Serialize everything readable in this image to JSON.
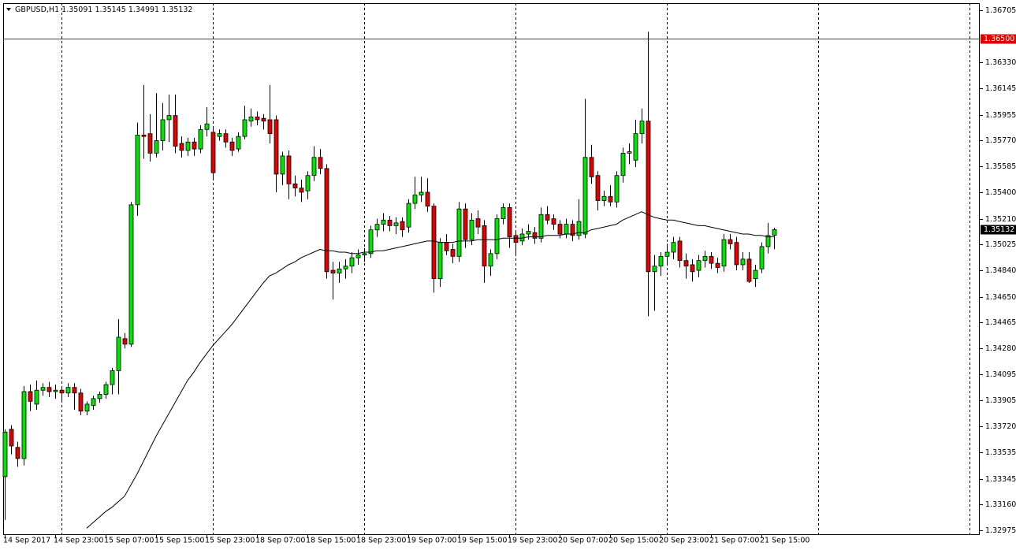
{
  "chart_data": {
    "type": "candlestick",
    "symbol": "GBPUSD,H1",
    "categories": [
      "14 Sep 2017",
      null,
      null,
      null,
      null,
      null,
      null,
      null,
      "14 Sep 23:00",
      null,
      null,
      null,
      null,
      null,
      null,
      null,
      "15 Sep 07:00",
      null,
      null,
      null,
      null,
      null,
      null,
      null,
      "15 Sep 15:00",
      null,
      null,
      null,
      null,
      null,
      null,
      null,
      "15 Sep 23:00",
      null,
      null,
      null,
      null,
      null,
      null,
      null,
      "18 Sep 07:00",
      null,
      null,
      null,
      null,
      null,
      null,
      null,
      "18 Sep 15:00",
      null,
      null,
      null,
      null,
      null,
      null,
      null,
      "18 Sep 23:00",
      null,
      null,
      null,
      null,
      null,
      null,
      null,
      "19 Sep 07:00",
      null,
      null,
      null,
      null,
      null,
      null,
      null,
      "19 Sep 15:00",
      null,
      null,
      null,
      null,
      null,
      null,
      null,
      "19 Sep 23:00",
      null,
      null,
      null,
      null,
      null,
      null,
      null,
      "20 Sep 07:00",
      null,
      null,
      null,
      null,
      null,
      null,
      null,
      "20 Sep 15:00",
      null,
      null,
      null,
      null,
      null,
      null,
      null,
      "20 Sep 23:00",
      null,
      null,
      null,
      null,
      null,
      null,
      null,
      "21 Sep 07:00",
      null,
      null,
      null,
      null,
      null,
      null,
      null,
      "21 Sep 15:00",
      null,
      null
    ],
    "open": [
      1.3336,
      1.337,
      1.3357,
      1.3349,
      1.3397,
      1.3388,
      1.3398,
      1.34,
      1.3397,
      1.3398,
      1.3396,
      1.34,
      1.3396,
      1.3383,
      1.3387,
      1.3392,
      1.3395,
      1.3402,
      1.3412,
      1.3435,
      1.3431,
      1.3531,
      1.3581,
      1.3582,
      1.3568,
      1.3577,
      1.3592,
      1.3595,
      1.3575,
      1.357,
      1.3576,
      1.3571,
      1.3585,
      1.3583,
      1.358,
      1.3582,
      1.3576,
      1.3571,
      1.358,
      1.3591,
      1.3594,
      1.3593,
      1.3592,
      1.3592,
      1.3553,
      1.3566,
      1.3546,
      1.3543,
      1.3541,
      1.3552,
      1.3565,
      1.3557,
      1.3484,
      1.3482,
      1.3485,
      1.3487,
      1.3493,
      1.3495,
      1.3496,
      1.3513,
      1.3517,
      1.352,
      1.3516,
      1.3519,
      1.3515,
      1.3532,
      1.3538,
      1.354,
      1.353,
      1.3478,
      1.3504,
      1.3499,
      1.3494,
      1.3528,
      1.3506,
      1.3521,
      1.3516,
      1.3487,
      1.3496,
      1.3521,
      1.3529,
      1.3509,
      1.3505,
      1.351,
      1.3511,
      1.3507,
      1.3524,
      1.3521,
      1.3517,
      1.351,
      1.3517,
      1.3509,
      1.351,
      1.3565,
      1.3552,
      1.3534,
      1.3537,
      1.3533,
      1.3552,
      1.3568,
      1.3563,
      1.3582,
      1.3591,
      1.3483,
      1.3487,
      1.3494,
      1.3497,
      1.3505,
      1.3491,
      1.3488,
      1.3484,
      1.3491,
      1.3494,
      1.3489,
      1.3487,
      1.3506,
      1.3504,
      1.3488,
      1.3492,
      1.3478,
      1.3485,
      1.3501,
      1.35091
    ],
    "high": [
      1.337,
      1.3373,
      1.3361,
      1.3401,
      1.3402,
      1.3405,
      1.3403,
      1.3404,
      1.3402,
      1.3401,
      1.3403,
      1.3403,
      1.3399,
      1.339,
      1.3394,
      1.3397,
      1.3404,
      1.3414,
      1.3449,
      1.3439,
      1.3533,
      1.359,
      1.3617,
      1.3596,
      1.3611,
      1.3604,
      1.361,
      1.361,
      1.358,
      1.3579,
      1.3579,
      1.3588,
      1.3601,
      1.3587,
      1.3585,
      1.3585,
      1.3579,
      1.3583,
      1.3602,
      1.36,
      1.3598,
      1.3596,
      1.3617,
      1.3595,
      1.3569,
      1.357,
      1.3552,
      1.3549,
      1.3555,
      1.3573,
      1.3571,
      1.356,
      1.349,
      1.349,
      1.3492,
      1.3497,
      1.3499,
      1.35,
      1.3516,
      1.3521,
      1.3525,
      1.3523,
      1.3522,
      1.3522,
      1.3535,
      1.3551,
      1.3551,
      1.355,
      1.3532,
      1.3507,
      1.351,
      1.3503,
      1.3533,
      1.3532,
      1.3525,
      1.3527,
      1.352,
      1.3499,
      1.3524,
      1.3532,
      1.3532,
      1.3512,
      1.3514,
      1.3517,
      1.3515,
      1.3529,
      1.353,
      1.3524,
      1.352,
      1.3521,
      1.352,
      1.3535,
      1.3607,
      1.3574,
      1.3555,
      1.3541,
      1.3545,
      1.3555,
      1.3572,
      1.3575,
      1.3592,
      1.36,
      1.3655,
      1.3495,
      1.3497,
      1.3503,
      1.3508,
      1.3508,
      1.3496,
      1.3492,
      1.3495,
      1.3498,
      1.3497,
      1.3493,
      1.351,
      1.351,
      1.3508,
      1.3497,
      1.3497,
      1.3488,
      1.3504,
      1.3518,
      1.35145
    ],
    "low": [
      1.3305,
      1.3352,
      1.3343,
      1.3344,
      1.3383,
      1.3384,
      1.3394,
      1.3393,
      1.3392,
      1.339,
      1.3393,
      1.3384,
      1.338,
      1.338,
      1.3384,
      1.3389,
      1.3392,
      1.3395,
      1.3395,
      1.3428,
      1.3429,
      1.3523,
      1.3564,
      1.3562,
      1.3565,
      1.357,
      1.3576,
      1.3568,
      1.3565,
      1.3566,
      1.3566,
      1.3568,
      1.358,
      1.355,
      1.3577,
      1.3572,
      1.3566,
      1.3569,
      1.3578,
      1.3587,
      1.3588,
      1.3585,
      1.3575,
      1.354,
      1.3545,
      1.3535,
      1.3537,
      1.3533,
      1.3535,
      1.3548,
      1.3553,
      1.3478,
      1.3463,
      1.3475,
      1.3478,
      1.3482,
      1.3488,
      1.349,
      1.3493,
      1.3508,
      1.3512,
      1.3512,
      1.351,
      1.3508,
      1.3511,
      1.3528,
      1.3533,
      1.3526,
      1.3468,
      1.3472,
      1.3495,
      1.3489,
      1.349,
      1.35,
      1.3502,
      1.351,
      1.3475,
      1.348,
      1.3492,
      1.3517,
      1.35,
      1.3495,
      1.3502,
      1.3506,
      1.3503,
      1.3504,
      1.3517,
      1.3513,
      1.3507,
      1.3507,
      1.3505,
      1.3506,
      1.3507,
      1.3546,
      1.3527,
      1.353,
      1.353,
      1.3529,
      1.3547,
      1.356,
      1.3558,
      1.3575,
      1.3451,
      1.3455,
      1.348,
      1.3488,
      1.3492,
      1.3486,
      1.3478,
      1.3476,
      1.3479,
      1.3486,
      1.3485,
      1.3482,
      1.3483,
      1.3499,
      1.3484,
      1.3484,
      1.3475,
      1.3472,
      1.3482,
      1.3496,
      1.34991
    ],
    "close": [
      1.3368,
      1.3358,
      1.3349,
      1.3397,
      1.339,
      1.3398,
      1.34,
      1.3397,
      1.3398,
      1.3396,
      1.34,
      1.3396,
      1.3383,
      1.3388,
      1.3392,
      1.3395,
      1.3402,
      1.3412,
      1.3436,
      1.3431,
      1.3531,
      1.3581,
      1.358,
      1.3568,
      1.3577,
      1.3592,
      1.3595,
      1.3573,
      1.357,
      1.3576,
      1.3571,
      1.3585,
      1.3589,
      1.3554,
      1.3582,
      1.3576,
      1.357,
      1.358,
      1.3592,
      1.3594,
      1.3592,
      1.3591,
      1.3582,
      1.3553,
      1.3566,
      1.3546,
      1.3543,
      1.354,
      1.3552,
      1.3565,
      1.3557,
      1.3483,
      1.3482,
      1.3485,
      1.3487,
      1.3493,
      1.3495,
      1.3496,
      1.3513,
      1.3517,
      1.352,
      1.3516,
      1.3518,
      1.3513,
      1.3532,
      1.3538,
      1.354,
      1.353,
      1.3478,
      1.3504,
      1.3498,
      1.3494,
      1.3528,
      1.3506,
      1.352,
      1.3515,
      1.3487,
      1.3496,
      1.3521,
      1.3529,
      1.3508,
      1.3504,
      1.351,
      1.3512,
      1.3507,
      1.3524,
      1.352,
      1.3517,
      1.351,
      1.3517,
      1.3509,
      1.3519,
      1.3565,
      1.3551,
      1.3534,
      1.3537,
      1.3533,
      1.3552,
      1.3568,
      1.3569,
      1.3582,
      1.3591,
      1.3483,
      1.3487,
      1.3494,
      1.3497,
      1.3504,
      1.3491,
      1.3487,
      1.3483,
      1.3491,
      1.3494,
      1.3489,
      1.3486,
      1.3506,
      1.3503,
      1.3488,
      1.3492,
      1.3476,
      1.3484,
      1.3501,
      1.3509,
      1.35132
    ],
    "ma_values": [
      null,
      null,
      null,
      null,
      null,
      null,
      null,
      null,
      null,
      null,
      null,
      null,
      null,
      1.3299,
      1.3303,
      1.3307,
      1.3311,
      1.3314,
      1.3318,
      1.3322,
      1.333,
      1.3338,
      1.3347,
      1.3356,
      1.3365,
      1.3373,
      1.3381,
      1.3389,
      1.3397,
      1.3405,
      1.3411,
      1.3418,
      1.3424,
      1.343,
      1.3435,
      1.344,
      1.3445,
      1.3451,
      1.3457,
      1.3463,
      1.3469,
      1.3475,
      1.348,
      1.3482,
      1.3485,
      1.3488,
      1.349,
      1.3493,
      1.3495,
      1.3497,
      1.3499,
      1.3498,
      1.3498,
      1.3497,
      1.3497,
      1.3496,
      1.3496,
      1.3497,
      1.3497,
      1.3498,
      1.3498,
      1.3499,
      1.35,
      1.3501,
      1.3502,
      1.3503,
      1.3504,
      1.3505,
      1.3505,
      1.3504,
      1.3504,
      1.3504,
      1.3505,
      1.3505,
      1.3505,
      1.3506,
      1.3506,
      1.3506,
      1.3506,
      1.3507,
      1.3507,
      1.3507,
      1.3507,
      1.3508,
      1.3508,
      1.3508,
      1.3509,
      1.3509,
      1.3509,
      1.351,
      1.351,
      1.3511,
      1.3511,
      1.3513,
      1.3514,
      1.3515,
      1.3516,
      1.3517,
      1.352,
      1.3522,
      1.3524,
      1.3526,
      1.3524,
      1.3522,
      1.3521,
      1.352,
      1.352,
      1.3519,
      1.3518,
      1.3517,
      1.3516,
      1.3516,
      1.3515,
      1.3514,
      1.3513,
      1.3512,
      1.3511,
      1.351,
      1.351,
      1.3509,
      1.3509,
      1.3508,
      1.3508
    ],
    "up_color": "#00e600",
    "down_color": "#e00000",
    "ma_color": "#000000",
    "level": {
      "value": 1.365,
      "label": "1.36500"
    },
    "level_color": "#e00000",
    "ylim": [
      1.32947,
      1.36756
    ],
    "yticks": [
      1.36705,
      {
        "value": 1.3633,
        "label": "1.36330"
      },
      1.36145,
      1.35955,
      {
        "value": 1.3577,
        "label": "1.35770"
      },
      1.35585,
      {
        "value": 1.354,
        "label": "1.35400"
      },
      {
        "value": 1.3521,
        "label": "1.35210"
      },
      1.35025,
      {
        "value": 1.3484,
        "label": "1.34840"
      },
      {
        "value": 1.3465,
        "label": "1.34650"
      },
      1.34465,
      {
        "value": 1.3428,
        "label": "1.34280"
      },
      1.34095,
      1.33905,
      {
        "value": 1.3372,
        "label": "1.33720"
      },
      1.33535,
      1.33345,
      {
        "value": 1.3316,
        "label": "1.33160"
      },
      1.32975
    ]
  }
}
